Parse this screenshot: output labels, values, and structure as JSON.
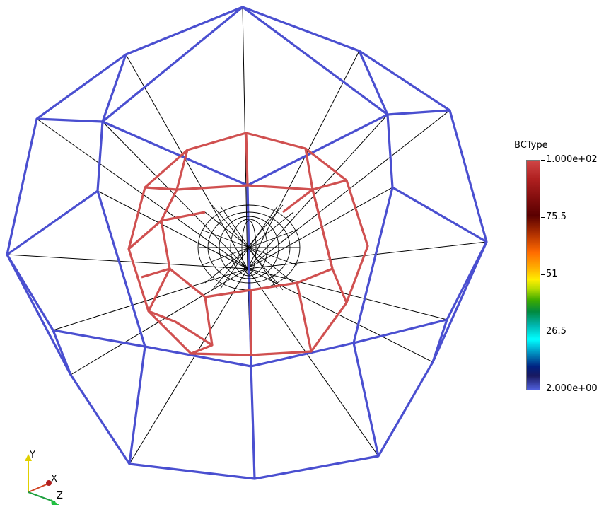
{
  "legend": {
    "title": "BCType",
    "max_label": "1.000e+02",
    "mid_labels": [
      "75.5",
      "51",
      "26.5"
    ],
    "min_label": "2.000e+00",
    "colors": {
      "max": "#d04646",
      "min": "#5060dc"
    }
  },
  "axes": {
    "y_label": "Y",
    "x_label": "X",
    "z_label": "Z"
  },
  "colors": {
    "outer_mesh": "#4a4fd0",
    "inner_mesh": "#d05050",
    "core_mesh": "#000000"
  }
}
